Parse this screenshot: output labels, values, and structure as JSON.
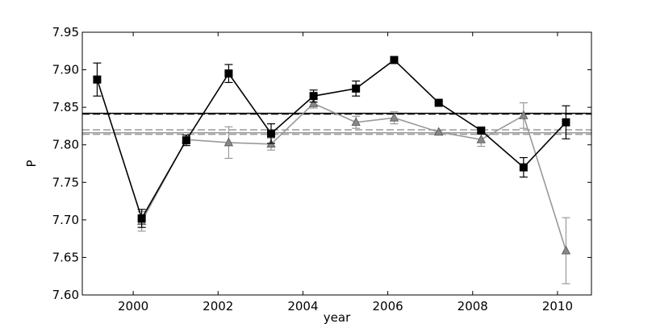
{
  "chart_data": {
    "type": "line",
    "xlabel": "year",
    "ylabel": "P",
    "xlim": [
      1998.8,
      2010.8
    ],
    "ylim": [
      7.6,
      7.95
    ],
    "xticks": [
      2000,
      2002,
      2004,
      2006,
      2008,
      2010
    ],
    "xtick_labels": [
      "2000",
      "2002",
      "2004",
      "2006",
      "2008",
      "2010"
    ],
    "yticks": [
      7.6,
      7.65,
      7.7,
      7.75,
      7.8,
      7.85,
      7.9,
      7.95
    ],
    "ytick_labels": [
      "7.60",
      "7.65",
      "7.70",
      "7.75",
      "7.80",
      "7.85",
      "7.90",
      "7.95"
    ],
    "grid": false,
    "series": [
      {
        "marker": "square",
        "color": "#000000",
        "x": [
          1999.15,
          2000.2,
          2001.25,
          2002.25,
          2003.25,
          2004.25,
          2005.25,
          2006.15,
          2007.2,
          2008.2,
          2009.2,
          2010.2
        ],
        "y": [
          7.887,
          7.702,
          7.806,
          7.895,
          7.815,
          7.865,
          7.875,
          7.913,
          7.856,
          7.819,
          7.77,
          7.83
        ],
        "yerr": [
          0.022,
          0.012,
          0.007,
          0.012,
          0.013,
          0.008,
          0.01,
          0.002,
          0.002,
          0.003,
          0.013,
          0.022
        ]
      },
      {
        "marker": "triangle",
        "color": "#999999",
        "x": [
          2000.2,
          2001.25,
          2002.25,
          2003.25,
          2004.25,
          2005.25,
          2006.15,
          2007.2,
          2008.2,
          2009.2,
          2010.2
        ],
        "y": [
          7.698,
          7.807,
          7.803,
          7.801,
          7.855,
          7.83,
          7.836,
          7.817,
          7.807,
          7.839,
          7.659
        ],
        "yerr": [
          0.013,
          0.003,
          0.021,
          0.008,
          0.006,
          0.008,
          0.008,
          0.002,
          0.009,
          0.017,
          0.044
        ]
      }
    ],
    "reference_lines": [
      {
        "y": 7.842,
        "color": "#000000",
        "style": "solid"
      },
      {
        "y": 7.841,
        "color": "#000000",
        "style": "dashed"
      },
      {
        "y": 7.816,
        "color": "#999999",
        "style": "solid"
      },
      {
        "y": 7.82,
        "color": "#999999",
        "style": "dashed"
      },
      {
        "y": 7.814,
        "color": "#999999",
        "style": "dashed"
      }
    ]
  }
}
